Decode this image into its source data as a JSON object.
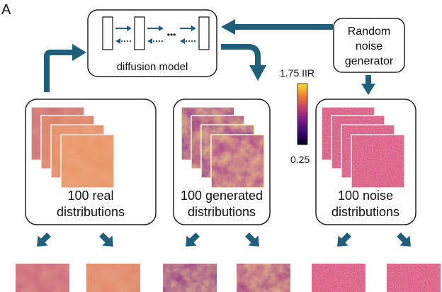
{
  "panel_label": "A",
  "diffusion_model": {
    "label": "diffusion model",
    "dots": "•••"
  },
  "noise_generator": {
    "line1": "Random",
    "line2": "noise",
    "line3": "generator"
  },
  "colorbar": {
    "max_label": "1.75 IIR",
    "min_label": "0.25"
  },
  "groups": {
    "real": {
      "line1": "100 real",
      "line2": "distributions"
    },
    "generated": {
      "line1": "100 generated",
      "line2": "distributions"
    },
    "noise": {
      "line1": "100 noise",
      "line2": "distributions"
    }
  },
  "colors": {
    "arrow": "#1f5f7a",
    "box_stroke": "#222222",
    "colormap": [
      "#0d0887",
      "#5b02a3",
      "#9a179b",
      "#cb4678",
      "#eb7852",
      "#fbb32f",
      "#f0f921"
    ]
  }
}
